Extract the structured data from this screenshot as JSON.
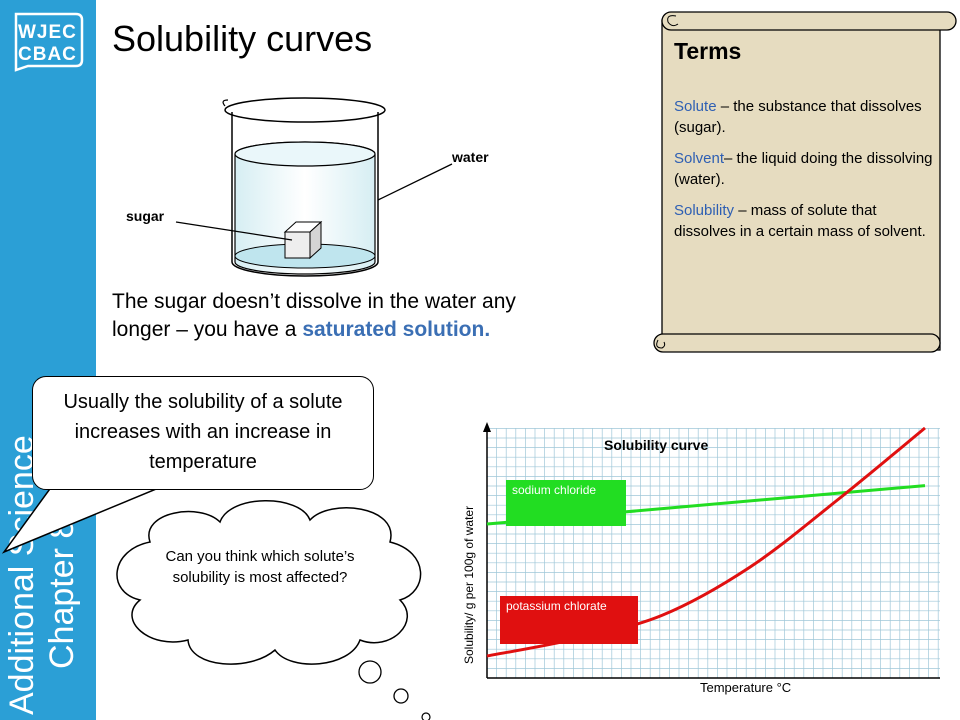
{
  "brand": {
    "line1": "WJEC",
    "line2": "CBAC"
  },
  "sidebar": {
    "line1": "Additional Science",
    "line2": "Chapter 8"
  },
  "title": "Solubility curves",
  "diagram": {
    "water_label": "water",
    "sugar_label": "sugar"
  },
  "caption": {
    "text": "The sugar doesn’t dissolve in the water any longer – you have a ",
    "highlight": "saturated solution."
  },
  "callout": "Usually the solubility of a solute increases with an increase in temperature",
  "cloud": "Can you think which solute’s solubility is most affected?",
  "terms": {
    "title": "Terms",
    "items": [
      {
        "term": "Solute",
        "text": " – the substance that dissolves (sugar)."
      },
      {
        "term": "Solvent",
        "text": "– the liquid doing the dissolving (water)."
      },
      {
        "term": "Solubility",
        "text": " – mass of solute that dissolves in a certain mass of solvent."
      }
    ]
  },
  "colors": {
    "sidebar": "#2b9fd6",
    "sodium": "#22dd22",
    "potassium": "#e01010",
    "term": "#2e5fb3",
    "scroll": "#e6dcc0"
  },
  "chart_data": {
    "type": "line",
    "title": "Solubility curve",
    "xlabel": "Temperature °C",
    "ylabel": "Solubility/  g per 100g of water",
    "grid": true,
    "series": [
      {
        "name": "sodium chloride",
        "color": "#22dd22",
        "x": [
          0,
          1
        ],
        "y": [
          0.6,
          0.76
        ]
      },
      {
        "name": "potassium chlorate",
        "color": "#e01010",
        "x": [
          0,
          0.2,
          0.4,
          0.6,
          0.8,
          1.0
        ],
        "y": [
          0.05,
          0.12,
          0.22,
          0.42,
          0.7,
          1.0
        ]
      }
    ]
  }
}
